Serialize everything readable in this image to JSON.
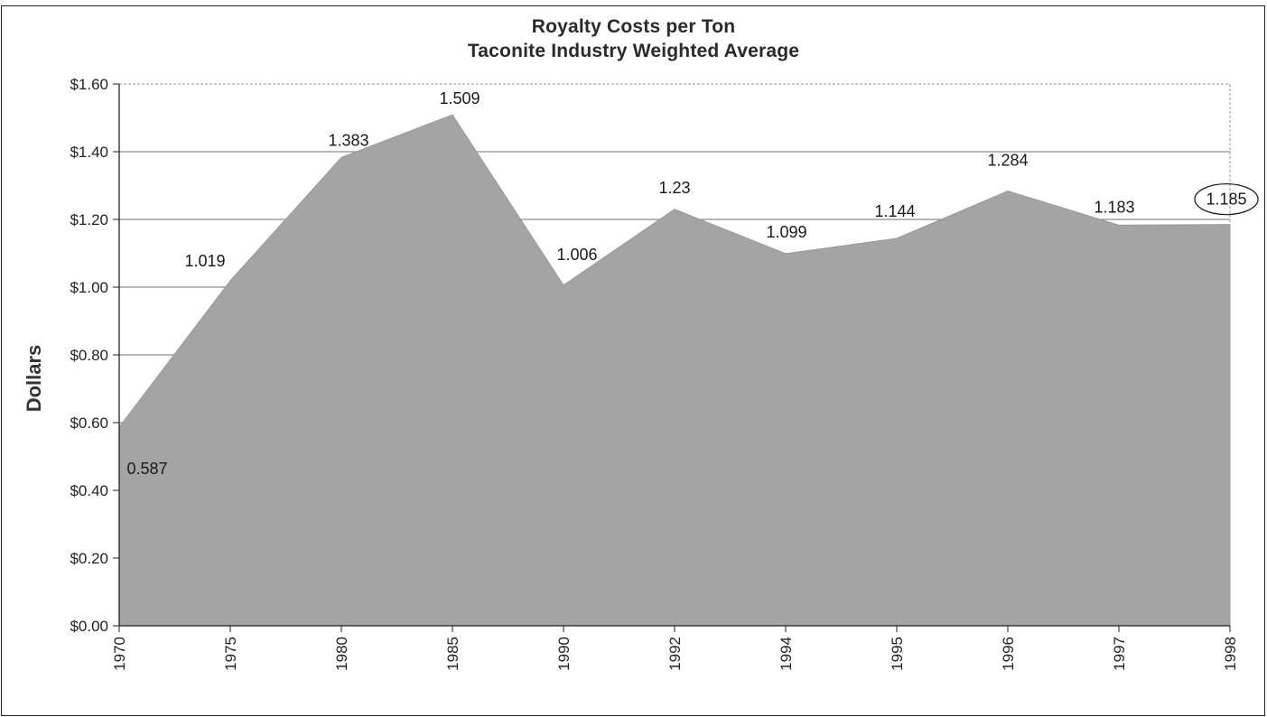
{
  "chart_data": {
    "type": "area",
    "title": "Royalty Costs per Ton",
    "subtitle": "Taconite Industry Weighted Average",
    "xlabel": "",
    "ylabel": "Dollars",
    "ylim": [
      0,
      1.6
    ],
    "yticks": [
      "$0.00",
      "$0.20",
      "$0.40",
      "$0.60",
      "$0.80",
      "$1.00",
      "$1.20",
      "$1.40",
      "$1.60"
    ],
    "grid": true,
    "categories": [
      "1970",
      "1975",
      "1980",
      "1985",
      "1990",
      "1992",
      "1994",
      "1995",
      "1996",
      "1997",
      "1998"
    ],
    "values": [
      0.587,
      1.019,
      1.383,
      1.509,
      1.006,
      1.23,
      1.099,
      1.144,
      1.284,
      1.183,
      1.185
    ],
    "labels": [
      "0.587",
      "1.019",
      "1.383",
      "1.509",
      "1.006",
      "1.23",
      "1.099",
      "1.144",
      "1.284",
      "1.183",
      "1.185"
    ],
    "highlighted_label": "1.185",
    "fill_color": "#a4a4a4"
  }
}
